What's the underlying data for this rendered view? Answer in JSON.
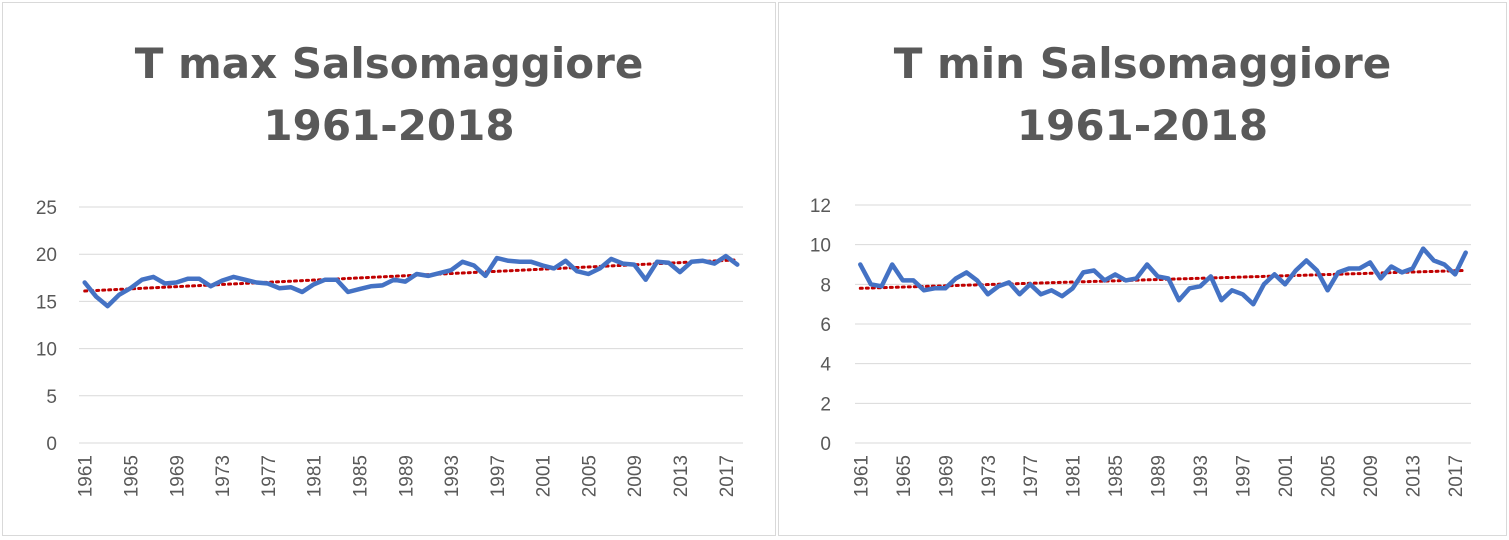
{
  "chart_data": [
    {
      "type": "line",
      "title_line1": "T max Salsomaggiore",
      "title_line2": "1961-2018",
      "x": [
        1961,
        1962,
        1963,
        1964,
        1965,
        1966,
        1967,
        1968,
        1969,
        1970,
        1971,
        1972,
        1973,
        1974,
        1975,
        1976,
        1977,
        1978,
        1979,
        1980,
        1981,
        1982,
        1983,
        1984,
        1985,
        1986,
        1987,
        1988,
        1989,
        1990,
        1991,
        1992,
        1993,
        1994,
        1995,
        1996,
        1997,
        1998,
        1999,
        2000,
        2001,
        2002,
        2003,
        2004,
        2005,
        2006,
        2007,
        2008,
        2009,
        2010,
        2011,
        2012,
        2013,
        2014,
        2015,
        2016,
        2017,
        2018
      ],
      "x_tick_labels": [
        "1961",
        "1965",
        "1969",
        "1973",
        "1977",
        "1981",
        "1985",
        "1989",
        "1993",
        "1997",
        "2001",
        "2005",
        "2009",
        "2013",
        "2017"
      ],
      "series": [
        {
          "values": [
            17.0,
            15.5,
            14.5,
            15.7,
            16.4,
            17.3,
            17.6,
            16.9,
            17.0,
            17.4,
            17.4,
            16.6,
            17.2,
            17.6,
            17.3,
            17.0,
            16.9,
            16.4,
            16.5,
            16.0,
            16.8,
            17.3,
            17.3,
            16.0,
            16.3,
            16.6,
            16.7,
            17.3,
            17.1,
            17.9,
            17.7,
            18.0,
            18.3,
            19.2,
            18.8,
            17.7,
            19.6,
            19.3,
            19.2,
            19.2,
            18.8,
            18.5,
            19.3,
            18.2,
            17.9,
            18.5,
            19.5,
            19.0,
            18.9,
            17.3,
            19.2,
            19.1,
            18.1,
            19.2,
            19.3,
            19.0,
            19.8,
            18.9
          ],
          "color": "#4472c4"
        }
      ],
      "trendline": {
        "start": 16.1,
        "end": 19.4,
        "color": "#c00000",
        "style": "dotted"
      },
      "yticks": [
        0,
        5,
        10,
        15,
        20,
        25
      ],
      "ylim": [
        0,
        25
      ],
      "grid": true,
      "xlabel": "",
      "ylabel": ""
    },
    {
      "type": "line",
      "title_line1": "T min Salsomaggiore",
      "title_line2": "1961-2018",
      "x": [
        1961,
        1962,
        1963,
        1964,
        1965,
        1966,
        1967,
        1968,
        1969,
        1970,
        1971,
        1972,
        1973,
        1974,
        1975,
        1976,
        1977,
        1978,
        1979,
        1980,
        1981,
        1982,
        1983,
        1984,
        1985,
        1986,
        1987,
        1988,
        1989,
        1990,
        1991,
        1992,
        1993,
        1994,
        1995,
        1996,
        1997,
        1998,
        1999,
        2000,
        2001,
        2002,
        2003,
        2004,
        2005,
        2006,
        2007,
        2008,
        2009,
        2010,
        2011,
        2012,
        2013,
        2014,
        2015,
        2016,
        2017,
        2018
      ],
      "x_tick_labels": [
        "1961",
        "1965",
        "1969",
        "1973",
        "1977",
        "1981",
        "1985",
        "1989",
        "1993",
        "1997",
        "2001",
        "2005",
        "2009",
        "2013",
        "2017"
      ],
      "series": [
        {
          "values": [
            9.0,
            8.0,
            7.9,
            9.0,
            8.2,
            8.2,
            7.7,
            7.8,
            7.8,
            8.3,
            8.6,
            8.2,
            7.5,
            7.9,
            8.1,
            7.5,
            8.0,
            7.5,
            7.7,
            7.4,
            7.8,
            8.6,
            8.7,
            8.2,
            8.5,
            8.2,
            8.3,
            9.0,
            8.4,
            8.3,
            7.2,
            7.8,
            7.9,
            8.4,
            7.2,
            7.7,
            7.5,
            7.0,
            8.0,
            8.5,
            8.0,
            8.7,
            9.2,
            8.7,
            7.7,
            8.6,
            8.8,
            8.8,
            9.1,
            8.3,
            8.9,
            8.6,
            8.8,
            9.8,
            9.2,
            9.0,
            8.5,
            9.6
          ],
          "color": "#4472c4"
        }
      ],
      "trendline": {
        "start": 7.8,
        "end": 8.7,
        "color": "#c00000",
        "style": "dotted"
      },
      "yticks": [
        0,
        2,
        4,
        6,
        8,
        10,
        12
      ],
      "ylim": [
        0,
        12
      ],
      "grid": true,
      "xlabel": "",
      "ylabel": ""
    }
  ]
}
